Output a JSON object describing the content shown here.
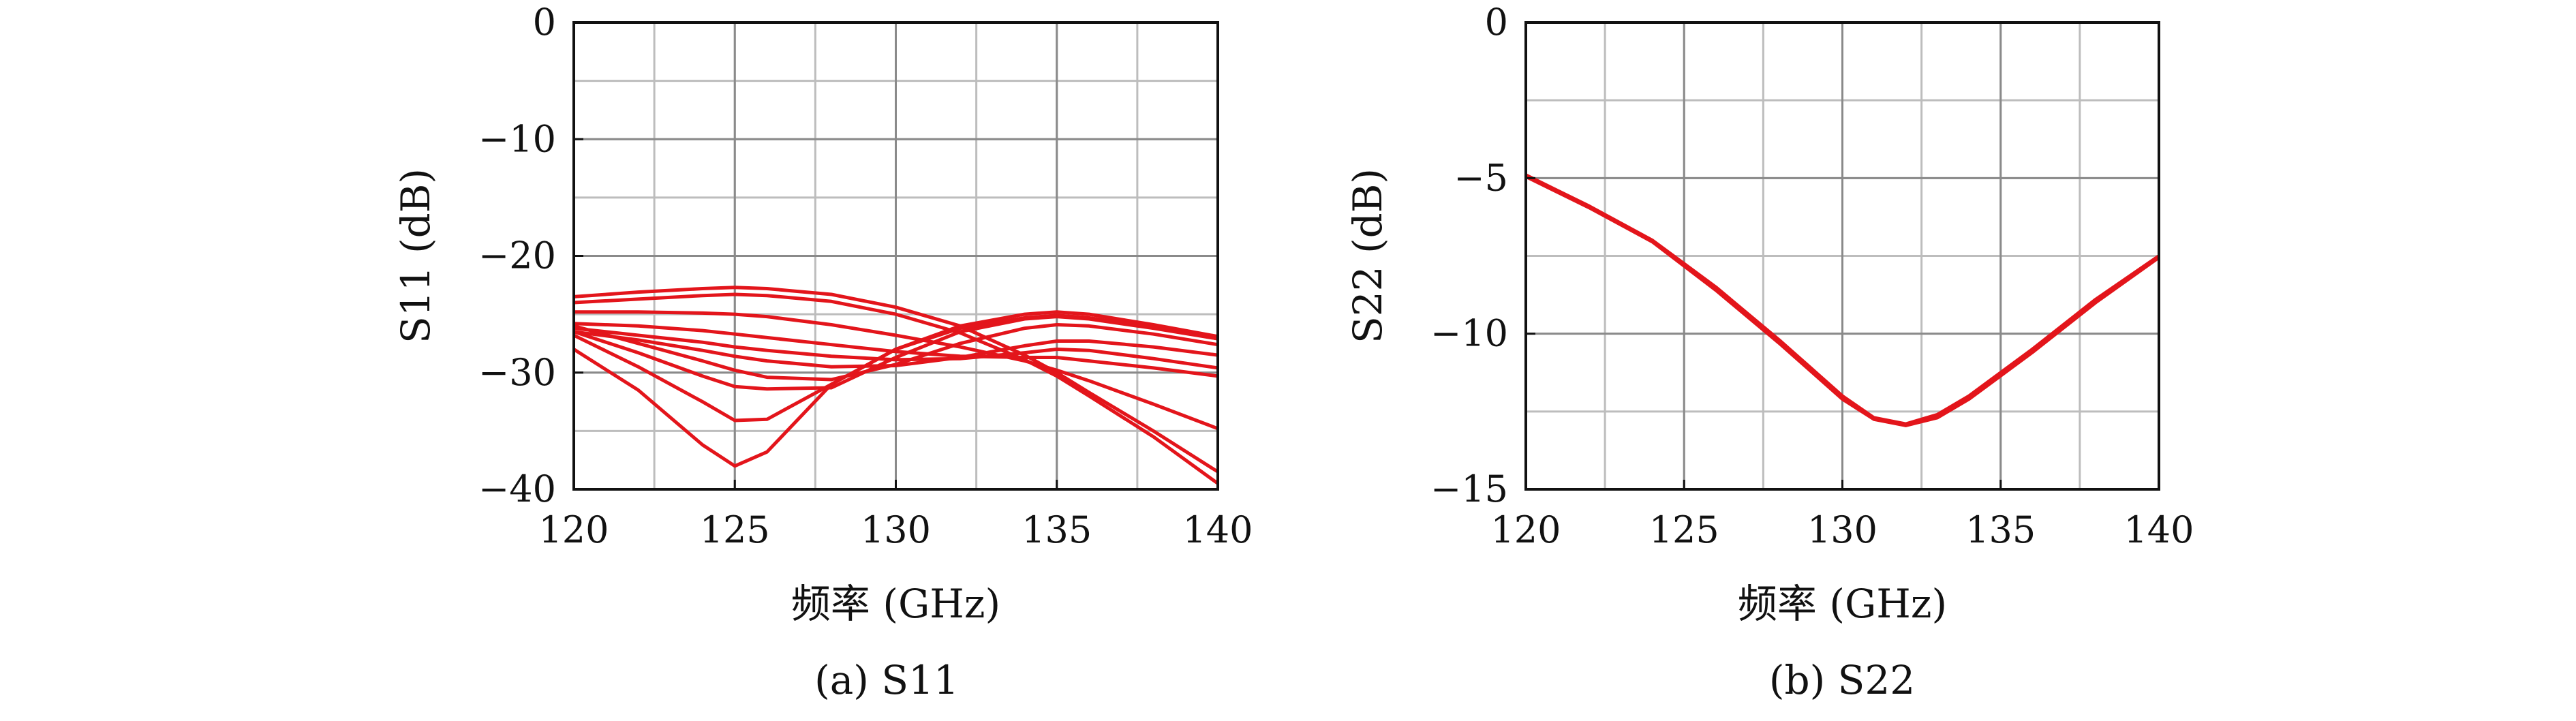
{
  "chart_data": [
    {
      "type": "line",
      "caption": "(a) S11",
      "xlabel": "频率 (GHz)",
      "ylabel": "S11 (dB)",
      "xlim": [
        120,
        140
      ],
      "ylim": [
        -40,
        0
      ],
      "xticks": [
        120,
        125,
        130,
        135,
        140
      ],
      "yticks": [
        0,
        -10,
        -20,
        -30,
        -40
      ],
      "grid": true,
      "color": "#e3151b",
      "x": [
        120,
        122,
        124,
        125,
        126,
        128,
        130,
        132,
        134,
        135,
        136,
        138,
        140
      ],
      "series": [
        {
          "values": [
            -23.5,
            -23.1,
            -22.8,
            -22.7,
            -22.8,
            -23.3,
            -24.4,
            -26.0,
            -28.5,
            -30.0,
            -31.7,
            -35.0,
            -38.5
          ]
        },
        {
          "values": [
            -24.0,
            -23.7,
            -23.4,
            -23.3,
            -23.4,
            -23.9,
            -25.0,
            -26.6,
            -28.9,
            -30.3,
            -32.0,
            -35.5,
            -39.5
          ]
        },
        {
          "values": [
            -24.8,
            -24.8,
            -24.9,
            -25.0,
            -25.2,
            -25.9,
            -26.8,
            -27.8,
            -29.0,
            -29.8,
            -30.7,
            -32.7,
            -34.8
          ]
        },
        {
          "values": [
            -25.8,
            -26.0,
            -26.4,
            -26.7,
            -27.0,
            -27.6,
            -28.2,
            -28.6,
            -28.7,
            -28.7,
            -29.0,
            -29.6,
            -30.3
          ]
        },
        {
          "values": [
            -26.2,
            -26.8,
            -27.4,
            -27.8,
            -28.1,
            -28.6,
            -28.9,
            -28.8,
            -28.3,
            -28.0,
            -28.1,
            -28.8,
            -29.6
          ]
        },
        {
          "values": [
            -26.5,
            -27.2,
            -28.1,
            -28.6,
            -29.0,
            -29.5,
            -29.4,
            -28.7,
            -27.7,
            -27.3,
            -27.3,
            -27.8,
            -28.5
          ]
        },
        {
          "values": [
            -26.0,
            -27.5,
            -29.0,
            -29.8,
            -30.4,
            -30.6,
            -29.3,
            -27.5,
            -26.2,
            -25.9,
            -26.0,
            -26.7,
            -27.6
          ]
        },
        {
          "values": [
            -26.5,
            -28.3,
            -30.3,
            -31.2,
            -31.4,
            -31.3,
            -28.7,
            -26.5,
            -25.4,
            -25.2,
            -25.4,
            -26.2,
            -27.1
          ]
        },
        {
          "values": [
            -26.8,
            -29.5,
            -32.5,
            -34.1,
            -34.0,
            -31.0,
            -28.0,
            -26.0,
            -25.0,
            -24.8,
            -25.0,
            -25.9,
            -26.9
          ]
        },
        {
          "values": [
            -28.0,
            -31.5,
            -36.2,
            -38.0,
            -36.8,
            -31.0,
            -28.0,
            -26.2,
            -25.3,
            -25.1,
            -25.3,
            -26.1,
            -27.1
          ]
        }
      ]
    },
    {
      "type": "line",
      "caption": "(b) S22",
      "xlabel": "频率 (GHz)",
      "ylabel": "S22 (dB)",
      "xlim": [
        120,
        140
      ],
      "ylim": [
        -15,
        0
      ],
      "xticks": [
        120,
        125,
        130,
        135,
        140
      ],
      "yticks": [
        0,
        -5,
        -10,
        -15
      ],
      "grid": true,
      "color": "#e3151b",
      "x": [
        120,
        122,
        124,
        126,
        128,
        129,
        130,
        131,
        132,
        133,
        134,
        136,
        138,
        140
      ],
      "series": [
        {
          "values": [
            -4.9,
            -5.9,
            -7.0,
            -8.5,
            -10.2,
            -11.1,
            -12.0,
            -12.7,
            -12.9,
            -12.6,
            -12.0,
            -10.5,
            -8.9,
            -7.5
          ]
        },
        {
          "values": [
            -4.95,
            -5.95,
            -7.05,
            -8.6,
            -10.3,
            -11.2,
            -12.1,
            -12.75,
            -12.95,
            -12.7,
            -12.1,
            -10.6,
            -9.0,
            -7.55
          ]
        }
      ]
    }
  ]
}
